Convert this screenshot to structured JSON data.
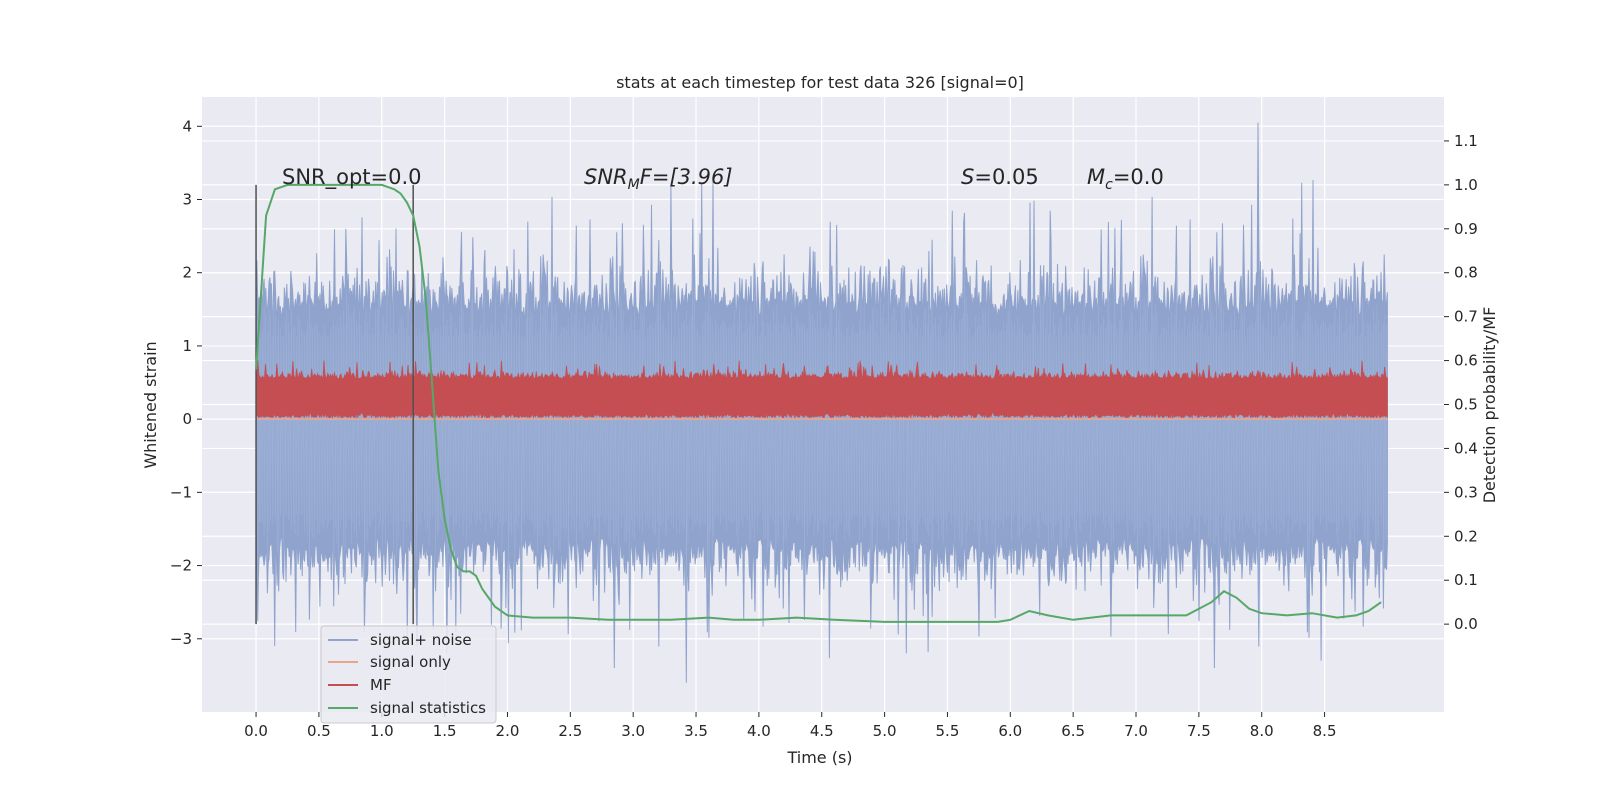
{
  "chart_data": {
    "type": "line",
    "title": "stats at each timestep for test data 326 [signal=0]",
    "xlabel": "Time (s)",
    "ylabel": "Whitened strain",
    "ylabel_right": "Detection probability/MF",
    "xlim": [
      -0.43,
      9.45
    ],
    "ylim": [
      -4.0,
      4.4
    ],
    "ylim_right": [
      -0.2,
      1.2
    ],
    "xticks": [
      0.0,
      0.5,
      1.0,
      1.5,
      2.0,
      2.5,
      3.0,
      3.5,
      4.0,
      4.5,
      5.0,
      5.5,
      6.0,
      6.5,
      7.0,
      7.5,
      8.0,
      8.5
    ],
    "xtick_labels": [
      "0.0",
      "0.5",
      "1.0",
      "1.5",
      "2.0",
      "2.5",
      "3.0",
      "3.5",
      "4.0",
      "4.5",
      "5.0",
      "5.5",
      "6.0",
      "6.5",
      "7.0",
      "7.5",
      "8.0",
      "8.5"
    ],
    "yticks": [
      4,
      3,
      2,
      1,
      0,
      -1,
      -2,
      -3
    ],
    "ytick_labels": [
      "4",
      "3",
      "2",
      "1",
      "0",
      "−1",
      "−2",
      "−3"
    ],
    "yticks_right": [
      1.1,
      1.0,
      0.9,
      0.8,
      0.7,
      0.6,
      0.5,
      0.4,
      0.3,
      0.2,
      0.1,
      0.0
    ],
    "ytick_labels_right": [
      "1.1",
      "1.0",
      "0.9",
      "0.8",
      "0.7",
      "0.6",
      "0.5",
      "0.4",
      "0.3",
      "0.2",
      "0.1",
      "0.0"
    ],
    "grid": true,
    "legend_position": "lower-left",
    "legend": [
      "signal+ noise",
      "signal only",
      "MF",
      "signal statistics"
    ],
    "annotations": {
      "snr_opt": "SNR_opt=0.0",
      "snr_mf_main": "SNR",
      "snr_mf_sub": "M",
      "snr_mf_rest": "F=[3.96]",
      "s_main": "S",
      "s_rest": "=0.05",
      "mc_main": "M",
      "mc_sub": "c",
      "mc_rest": "=0.0"
    },
    "vertical_markers": [
      0.0,
      1.25
    ],
    "vertical_marker_range": [
      -2.8,
      3.2
    ],
    "series": [
      {
        "name": "signal+ noise",
        "color": "#8fa3cc",
        "x_range": [
          0.0,
          9.0
        ],
        "center": -0.15,
        "typical_range": [
          -1.6,
          1.4
        ],
        "extremes": [
          {
            "x": 7.97,
            "y": 4.05
          },
          {
            "x": 3.42,
            "y": -3.6
          },
          {
            "x": 8.47,
            "y": -3.3
          },
          {
            "x": 0.15,
            "y": -3.1
          },
          {
            "x": 5.17,
            "y": -3.2
          },
          {
            "x": 3.3,
            "y": 3.2
          }
        ]
      },
      {
        "name": "signal only",
        "color": "#e8a58c",
        "x": [
          0.0,
          9.0
        ],
        "y": [
          0.0,
          0.0
        ]
      },
      {
        "name": "MF",
        "color": "#c44e52",
        "x_range": [
          0.0,
          9.0
        ],
        "typical_range": [
          0.0,
          0.6
        ],
        "peak": 0.8
      },
      {
        "name": "signal statistics",
        "color": "#55a868",
        "axis": "right",
        "x": [
          0.0,
          0.08,
          0.15,
          0.25,
          0.4,
          0.6,
          0.8,
          1.0,
          1.1,
          1.15,
          1.2,
          1.25,
          1.3,
          1.35,
          1.4,
          1.45,
          1.5,
          1.55,
          1.6,
          1.65,
          1.7,
          1.75,
          1.8,
          1.9,
          2.0,
          2.2,
          2.5,
          2.8,
          3.0,
          3.3,
          3.6,
          3.8,
          4.0,
          4.3,
          4.6,
          5.0,
          5.3,
          5.6,
          5.9,
          6.0,
          6.15,
          6.3,
          6.5,
          6.8,
          7.0,
          7.2,
          7.4,
          7.6,
          7.7,
          7.8,
          7.9,
          8.0,
          8.2,
          8.4,
          8.6,
          8.75,
          8.85,
          8.95
        ],
        "y": [
          0.58,
          0.93,
          0.99,
          1.0,
          1.0,
          1.0,
          1.0,
          1.0,
          0.99,
          0.98,
          0.96,
          0.93,
          0.86,
          0.74,
          0.55,
          0.35,
          0.24,
          0.17,
          0.13,
          0.12,
          0.12,
          0.11,
          0.08,
          0.04,
          0.02,
          0.015,
          0.015,
          0.01,
          0.01,
          0.01,
          0.015,
          0.01,
          0.01,
          0.015,
          0.01,
          0.005,
          0.005,
          0.005,
          0.005,
          0.01,
          0.03,
          0.02,
          0.01,
          0.02,
          0.02,
          0.02,
          0.02,
          0.05,
          0.075,
          0.06,
          0.035,
          0.025,
          0.02,
          0.025,
          0.015,
          0.02,
          0.03,
          0.05
        ]
      }
    ]
  },
  "colors": {
    "plot_bg": "#eaeaf2",
    "grid": "#ffffff",
    "marker": "#505050",
    "text": "#262626"
  }
}
